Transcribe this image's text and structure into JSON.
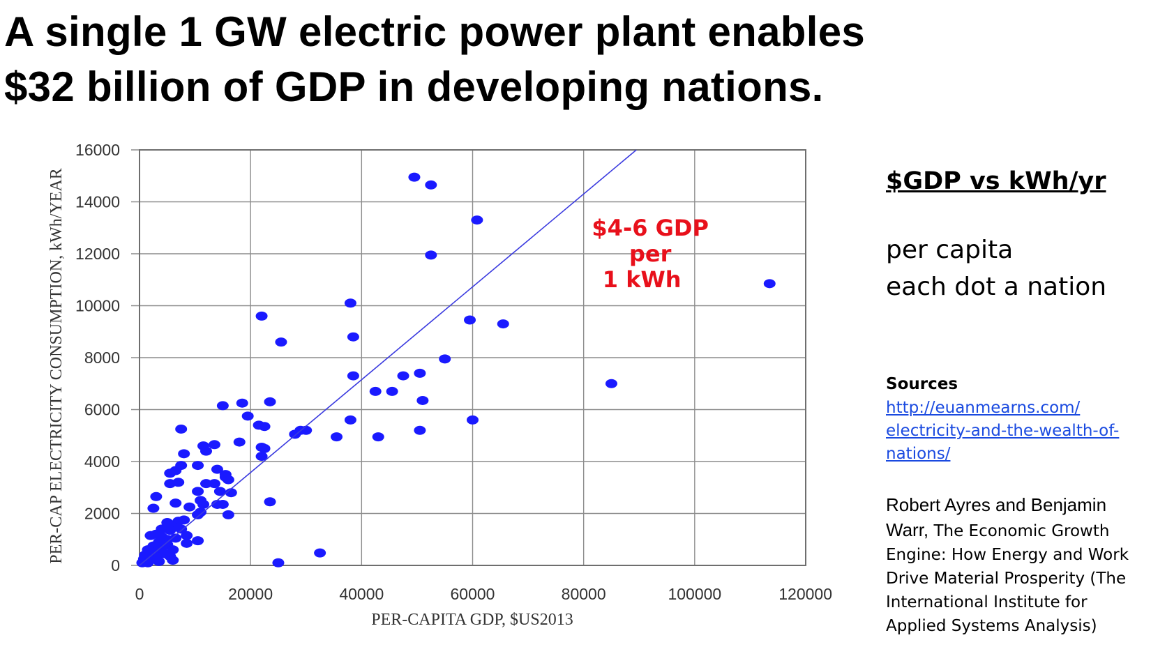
{
  "title": {
    "line1": "A single 1 GW electric power plant enables",
    "line2": "$32 billion of GDP in developing nations."
  },
  "side_panel": {
    "heading": "$GDP vs kWh/yr",
    "line1": "per capita",
    "line2": "each dot a nation",
    "sources_label": "Sources",
    "link_line1": "http://euanmearns.com/",
    "link_line2": "electricity-and-the-wealth-of-",
    "link_line3": "nations/",
    "ref_authors": "Robert Ayres and Benjamin Warr,",
    "ref_book": "The Economic Growth Engine: How Energy and Work Drive Material Prosperity (The International Institute for Applied Systems Analysis)"
  },
  "colors": {
    "points": "#1a1aff",
    "trendline": "#3a3adf",
    "annotation": "#e8101b",
    "grid": "#8c8c8c",
    "link": "#1a4ae0"
  },
  "chart_data": {
    "type": "scatter",
    "xlabel": "PER-CAPITA GDP, $US2013",
    "ylabel": "PER-CAP ELECTRICITY CONSUMPTION, kWh/YEAR",
    "xlim": [
      0,
      120000
    ],
    "ylim": [
      0,
      16000
    ],
    "x_ticks": [
      0,
      20000,
      40000,
      60000,
      80000,
      100000,
      120000
    ],
    "y_ticks": [
      0,
      2000,
      4000,
      6000,
      8000,
      10000,
      12000,
      14000,
      16000
    ],
    "grid": true,
    "trendline": {
      "from": [
        0,
        0
      ],
      "to": [
        89500,
        16000
      ]
    },
    "annotation": {
      "lines": [
        "$4-6 GDP",
        "per",
        "1 kWh"
      ],
      "x": 92000,
      "y": 12700
    },
    "series": [
      {
        "name": "nations",
        "points": [
          [
            49500,
            14950
          ],
          [
            52500,
            14650
          ],
          [
            60800,
            13300
          ],
          [
            52500,
            11950
          ],
          [
            113500,
            10850
          ],
          [
            38000,
            10100
          ],
          [
            22000,
            9600
          ],
          [
            59500,
            9450
          ],
          [
            65500,
            9300
          ],
          [
            38500,
            8800
          ],
          [
            25500,
            8600
          ],
          [
            55000,
            7950
          ],
          [
            85000,
            7000
          ],
          [
            38500,
            7300
          ],
          [
            47500,
            7300
          ],
          [
            50500,
            7400
          ],
          [
            42500,
            6700
          ],
          [
            45500,
            6700
          ],
          [
            51000,
            6350
          ],
          [
            15000,
            6150
          ],
          [
            18500,
            6250
          ],
          [
            23500,
            6300
          ],
          [
            19500,
            5750
          ],
          [
            21500,
            5400
          ],
          [
            22500,
            5350
          ],
          [
            38000,
            5600
          ],
          [
            60000,
            5600
          ],
          [
            50500,
            5200
          ],
          [
            29000,
            5200
          ],
          [
            28000,
            5050
          ],
          [
            30000,
            5200
          ],
          [
            35500,
            4950
          ],
          [
            43000,
            4950
          ],
          [
            7500,
            5250
          ],
          [
            18000,
            4750
          ],
          [
            22000,
            4550
          ],
          [
            22500,
            4500
          ],
          [
            22000,
            4200
          ],
          [
            11500,
            4600
          ],
          [
            13500,
            4650
          ],
          [
            12000,
            4400
          ],
          [
            8000,
            4300
          ],
          [
            10500,
            3850
          ],
          [
            6500,
            3650
          ],
          [
            5500,
            3550
          ],
          [
            7500,
            3850
          ],
          [
            14000,
            3700
          ],
          [
            15500,
            3500
          ],
          [
            16000,
            3300
          ],
          [
            15500,
            3400
          ],
          [
            5500,
            3150
          ],
          [
            7000,
            3200
          ],
          [
            12000,
            3150
          ],
          [
            13500,
            3150
          ],
          [
            14500,
            2850
          ],
          [
            16500,
            2800
          ],
          [
            10500,
            2850
          ],
          [
            11000,
            2500
          ],
          [
            11500,
            2350
          ],
          [
            14000,
            2350
          ],
          [
            15000,
            2350
          ],
          [
            23500,
            2450
          ],
          [
            16000,
            1950
          ],
          [
            3000,
            2650
          ],
          [
            6500,
            2400
          ],
          [
            2500,
            2200
          ],
          [
            9000,
            2250
          ],
          [
            10500,
            1950
          ],
          [
            11000,
            2050
          ],
          [
            8000,
            1750
          ],
          [
            7000,
            1700
          ],
          [
            5000,
            1650
          ],
          [
            6000,
            1500
          ],
          [
            7500,
            1400
          ],
          [
            4000,
            1400
          ],
          [
            5500,
            1350
          ],
          [
            3000,
            1200
          ],
          [
            4000,
            1100
          ],
          [
            2000,
            1150
          ],
          [
            6500,
            1050
          ],
          [
            8500,
            1150
          ],
          [
            5000,
            1000
          ],
          [
            3500,
            900
          ],
          [
            8500,
            850
          ],
          [
            10500,
            950
          ],
          [
            5000,
            800
          ],
          [
            2500,
            750
          ],
          [
            3500,
            600
          ],
          [
            6000,
            600
          ],
          [
            1500,
            600
          ],
          [
            2500,
            500
          ],
          [
            4500,
            450
          ],
          [
            1000,
            400
          ],
          [
            3000,
            350
          ],
          [
            5500,
            350
          ],
          [
            800,
            250
          ],
          [
            2000,
            250
          ],
          [
            3500,
            150
          ],
          [
            6000,
            200
          ],
          [
            1500,
            100
          ],
          [
            500,
            100
          ],
          [
            32500,
            480
          ],
          [
            25000,
            100
          ],
          [
            4000,
            700
          ]
        ]
      }
    ]
  }
}
